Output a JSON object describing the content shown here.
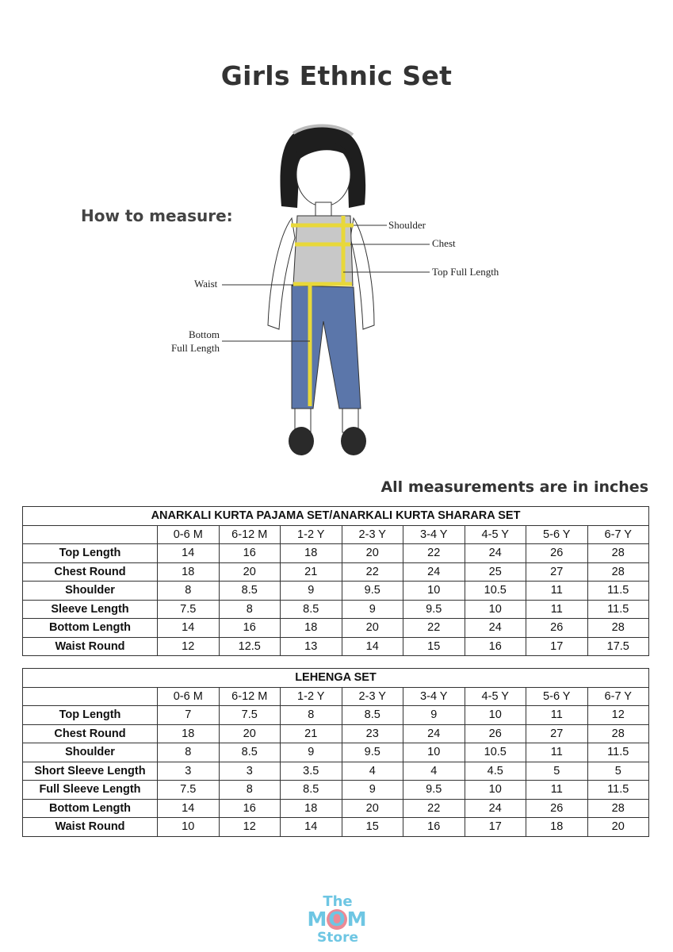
{
  "title": "Girls Ethnic Set",
  "how_to_measure": "How to measure:",
  "figure_labels": {
    "shoulder": "Shoulder",
    "chest": "Chest",
    "top_full_length": "Top Full Length",
    "waist": "Waist",
    "bottom_full_length_1": "Bottom",
    "bottom_full_length_2": "Full Length"
  },
  "units_note": "All measurements are in inches",
  "sizes": [
    "0-6 M",
    "6-12 M",
    "1-2 Y",
    "2-3 Y",
    "3-4 Y",
    "4-5 Y",
    "5-6 Y",
    "6-7 Y"
  ],
  "tables": [
    {
      "title": "ANARKALI KURTA PAJAMA SET/ANARKALI KURTA SHARARA SET",
      "rows": [
        {
          "label": "Top Length",
          "values": [
            "14",
            "16",
            "18",
            "20",
            "22",
            "24",
            "26",
            "28"
          ]
        },
        {
          "label": "Chest Round",
          "values": [
            "18",
            "20",
            "21",
            "22",
            "24",
            "25",
            "27",
            "28"
          ]
        },
        {
          "label": "Shoulder",
          "values": [
            "8",
            "8.5",
            "9",
            "9.5",
            "10",
            "10.5",
            "11",
            "11.5"
          ]
        },
        {
          "label": "Sleeve Length",
          "values": [
            "7.5",
            "8",
            "8.5",
            "9",
            "9.5",
            "10",
            "11",
            "11.5"
          ]
        },
        {
          "label": "Bottom Length",
          "values": [
            "14",
            "16",
            "18",
            "20",
            "22",
            "24",
            "26",
            "28"
          ]
        },
        {
          "label": "Waist Round",
          "values": [
            "12",
            "12.5",
            "13",
            "14",
            "15",
            "16",
            "17",
            "17.5"
          ]
        }
      ]
    },
    {
      "title": "LEHENGA SET",
      "rows": [
        {
          "label": "Top Length",
          "values": [
            "7",
            "7.5",
            "8",
            "8.5",
            "9",
            "10",
            "11",
            "12"
          ]
        },
        {
          "label": "Chest Round",
          "values": [
            "18",
            "20",
            "21",
            "23",
            "24",
            "26",
            "27",
            "28"
          ]
        },
        {
          "label": "Shoulder",
          "values": [
            "8",
            "8.5",
            "9",
            "9.5",
            "10",
            "10.5",
            "11",
            "11.5"
          ]
        },
        {
          "label": "Short Sleeve Length",
          "values": [
            "3",
            "3",
            "3.5",
            "4",
            "4",
            "4.5",
            "5",
            "5"
          ]
        },
        {
          "label": "Full Sleeve Length",
          "values": [
            "7.5",
            "8",
            "8.5",
            "9",
            "9.5",
            "10",
            "11",
            "11.5"
          ]
        },
        {
          "label": "Bottom Length",
          "values": [
            "14",
            "16",
            "18",
            "20",
            "22",
            "24",
            "26",
            "28"
          ]
        },
        {
          "label": "Waist Round",
          "values": [
            "10",
            "12",
            "14",
            "15",
            "16",
            "17",
            "18",
            "20"
          ]
        }
      ]
    }
  ],
  "logo": {
    "line1": "The",
    "line2": "MOM",
    "line3": "Store",
    "text_color": "#6ec6e3",
    "accent_color": "#ec8a95"
  }
}
